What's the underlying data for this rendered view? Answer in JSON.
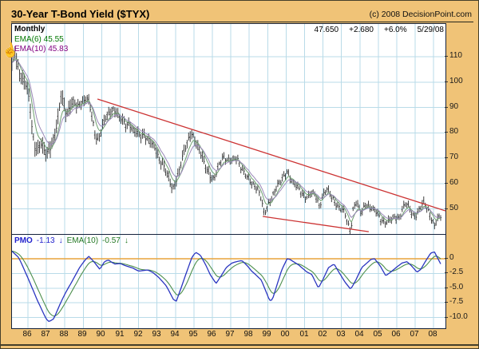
{
  "header": {
    "title": "30-Year T-Bond Yield ($TYX)",
    "copyright": "(c) 2008 DecisionPoint.com"
  },
  "price_panel": {
    "timeframe_label": "Monthly",
    "ema6_label": "EMA(6) 45.55",
    "ema10_label": "EMA(10) 45.83",
    "quote": {
      "last": "47.650",
      "change": "+2.680",
      "pct": "+6.0%",
      "date": "5/29/08"
    }
  },
  "pmo_panel": {
    "pmo_label": "PMO",
    "pmo_value": "-1.13",
    "pmo_arrow": "↓",
    "ema_label": "EMA(10)",
    "ema_value": "-0.57",
    "ema_arrow": "↓"
  },
  "colors": {
    "background_tan": "#f0c377",
    "panel_border": "#16233c",
    "grid": "#b9dbe8",
    "bar": "#2b2b2b",
    "ema6_line": "#6fa070",
    "ema10_line": "#9a88b8",
    "trendline_red": "#cc3333",
    "pmo_blue": "#2a35c0",
    "pmo_green": "#4d8f4d",
    "zero_orange": "#e9a33c",
    "tick_text": "#1a1a1a"
  },
  "chart_data": [
    {
      "type": "ohlc",
      "title": "30-Year T-Bond Yield ($TYX)",
      "timeframe": "Monthly",
      "x": {
        "start": 1985.13,
        "end": 2008.43,
        "labels": [
          "86",
          "87",
          "88",
          "89",
          "90",
          "91",
          "92",
          "93",
          "94",
          "95",
          "96",
          "97",
          "98",
          "99",
          "00",
          "01",
          "02",
          "03",
          "04",
          "05",
          "06",
          "07",
          "08"
        ],
        "label_start_year": 1986
      },
      "y": {
        "ticks": [
          110,
          100,
          90,
          80,
          70,
          60,
          50
        ],
        "range": [
          40,
          123
        ]
      },
      "series": [
        {
          "name": "TYX monthly",
          "anchors": [
            [
              1985.13,
              107
            ],
            [
              1985.2,
              109
            ],
            [
              1985.3,
              112
            ],
            [
              1985.45,
              106
            ],
            [
              1985.6,
              103
            ],
            [
              1985.75,
              100
            ],
            [
              1985.95,
              98
            ],
            [
              1986.1,
              91
            ],
            [
              1986.25,
              80
            ],
            [
              1986.4,
              74
            ],
            [
              1986.55,
              73.5
            ],
            [
              1986.7,
              76
            ],
            [
              1986.85,
              72.5
            ],
            [
              1987.0,
              72
            ],
            [
              1987.15,
              73.5
            ],
            [
              1987.3,
              76
            ],
            [
              1987.5,
              80
            ],
            [
              1987.65,
              86
            ],
            [
              1987.8,
              95
            ],
            [
              1987.95,
              91
            ],
            [
              1988.1,
              87.5
            ],
            [
              1988.3,
              90.5
            ],
            [
              1988.5,
              92
            ],
            [
              1988.65,
              89.5
            ],
            [
              1988.85,
              92.5
            ],
            [
              1989.0,
              92
            ],
            [
              1989.15,
              94
            ],
            [
              1989.3,
              92
            ],
            [
              1989.5,
              85
            ],
            [
              1989.65,
              79
            ],
            [
              1989.8,
              77.5
            ],
            [
              1990.0,
              81.5
            ],
            [
              1990.2,
              85.5
            ],
            [
              1990.4,
              87.5
            ],
            [
              1990.6,
              89.5
            ],
            [
              1990.75,
              89
            ],
            [
              1990.9,
              86.5
            ],
            [
              1991.1,
              84.5
            ],
            [
              1991.3,
              83
            ],
            [
              1991.5,
              84
            ],
            [
              1991.7,
              81
            ],
            [
              1991.9,
              79.5
            ],
            [
              1992.1,
              78.5
            ],
            [
              1992.3,
              79.5
            ],
            [
              1992.5,
              77.5
            ],
            [
              1992.7,
              75.5
            ],
            [
              1992.9,
              73.5
            ],
            [
              1993.1,
              70
            ],
            [
              1993.3,
              68
            ],
            [
              1993.5,
              64.5
            ],
            [
              1993.7,
              60
            ],
            [
              1993.85,
              57.5
            ],
            [
              1994.0,
              61
            ],
            [
              1994.15,
              64
            ],
            [
              1994.3,
              68
            ],
            [
              1994.5,
              73
            ],
            [
              1994.7,
              77
            ],
            [
              1994.85,
              80.5
            ],
            [
              1995.0,
              78.5
            ],
            [
              1995.15,
              75
            ],
            [
              1995.35,
              72
            ],
            [
              1995.55,
              68
            ],
            [
              1995.75,
              65.5
            ],
            [
              1995.95,
              62
            ],
            [
              1996.1,
              61.5
            ],
            [
              1996.25,
              64.5
            ],
            [
              1996.45,
              69
            ],
            [
              1996.6,
              71
            ],
            [
              1996.8,
              69.5
            ],
            [
              1997.0,
              68.5
            ],
            [
              1997.2,
              69.5
            ],
            [
              1997.35,
              70
            ],
            [
              1997.5,
              67.5
            ],
            [
              1997.7,
              64.5
            ],
            [
              1997.9,
              62
            ],
            [
              1998.1,
              60
            ],
            [
              1998.3,
              59.5
            ],
            [
              1998.5,
              57.5
            ],
            [
              1998.65,
              54
            ],
            [
              1998.8,
              47.5
            ],
            [
              1998.95,
              50
            ],
            [
              1999.1,
              53
            ],
            [
              1999.3,
              56
            ],
            [
              1999.5,
              58.5
            ],
            [
              1999.7,
              60.5
            ],
            [
              1999.9,
              63
            ],
            [
              2000.05,
              65.5
            ],
            [
              2000.2,
              62.5
            ],
            [
              2000.4,
              59.5
            ],
            [
              2000.6,
              58.5
            ],
            [
              2000.8,
              57
            ],
            [
              2001.0,
              55
            ],
            [
              2001.2,
              54.5
            ],
            [
              2001.4,
              56
            ],
            [
              2001.6,
              55.5
            ],
            [
              2001.8,
              51.5
            ],
            [
              2002.0,
              55
            ],
            [
              2002.2,
              57.5
            ],
            [
              2002.4,
              55.5
            ],
            [
              2002.6,
              53.5
            ],
            [
              2002.8,
              51
            ],
            [
              2003.0,
              49.5
            ],
            [
              2003.2,
              48
            ],
            [
              2003.35,
              44
            ],
            [
              2003.5,
              41.5
            ],
            [
              2003.65,
              51
            ],
            [
              2003.8,
              52
            ],
            [
              2003.95,
              50
            ],
            [
              2004.1,
              48
            ],
            [
              2004.3,
              52.5
            ],
            [
              2004.5,
              51
            ],
            [
              2004.7,
              49.5
            ],
            [
              2004.9,
              48.5
            ],
            [
              2005.1,
              46.5
            ],
            [
              2005.3,
              45
            ],
            [
              2005.5,
              44.5
            ],
            [
              2005.7,
              45.5
            ],
            [
              2005.9,
              47
            ],
            [
              2006.1,
              46.5
            ],
            [
              2006.3,
              49.5
            ],
            [
              2006.5,
              52
            ],
            [
              2006.7,
              50
            ],
            [
              2006.9,
              47.5
            ],
            [
              2007.1,
              48
            ],
            [
              2007.3,
              50.5
            ],
            [
              2007.5,
              52.5
            ],
            [
              2007.7,
              49.5
            ],
            [
              2007.9,
              46
            ],
            [
              2008.05,
              43
            ],
            [
              2008.2,
              45.5
            ],
            [
              2008.33,
              46.5
            ],
            [
              2008.42,
              47.65
            ]
          ],
          "last": 47.65
        },
        {
          "name": "EMA(6)",
          "period": 6,
          "last": 45.55
        },
        {
          "name": "EMA(10)",
          "period": 10,
          "last": 45.83
        }
      ],
      "trendlines": [
        {
          "from": [
            1989.77,
            93.3
          ],
          "to": [
            2008.64,
            49.2
          ]
        },
        {
          "from": [
            1998.73,
            47.0
          ],
          "to": [
            2004.48,
            41.0
          ]
        }
      ]
    },
    {
      "type": "line",
      "title": "PMO",
      "y": {
        "ticks": [
          0,
          -2.5,
          -5.0,
          -7.5,
          -10.0
        ],
        "zero_line": 0,
        "range": [
          -11.8,
          4.1
        ]
      },
      "series": [
        {
          "name": "PMO",
          "last": -1.13,
          "anchors": [
            [
              1985.13,
              1.3
            ],
            [
              1985.5,
              0.2
            ],
            [
              1985.75,
              -1.5
            ],
            [
              1986.1,
              -4.0
            ],
            [
              1986.5,
              -7.0
            ],
            [
              1986.8,
              -9.0
            ],
            [
              1987.0,
              -10.3
            ],
            [
              1987.15,
              -10.7
            ],
            [
              1987.4,
              -10.2
            ],
            [
              1987.7,
              -8.0
            ],
            [
              1988.0,
              -6.0
            ],
            [
              1988.4,
              -3.8
            ],
            [
              1988.8,
              -1.5
            ],
            [
              1989.1,
              -0.2
            ],
            [
              1989.3,
              0.4
            ],
            [
              1989.55,
              -0.4
            ],
            [
              1989.9,
              -1.8
            ],
            [
              1990.15,
              -0.5
            ],
            [
              1990.35,
              -0.2
            ],
            [
              1990.7,
              -0.9
            ],
            [
              1991.0,
              -0.8
            ],
            [
              1991.3,
              -1.2
            ],
            [
              1991.7,
              -1.6
            ],
            [
              1992.0,
              -2.1
            ],
            [
              1992.5,
              -1.9
            ],
            [
              1992.8,
              -2.4
            ],
            [
              1993.1,
              -3.2
            ],
            [
              1993.5,
              -4.6
            ],
            [
              1993.9,
              -7.0
            ],
            [
              1994.05,
              -7.2
            ],
            [
              1994.3,
              -5.0
            ],
            [
              1994.6,
              -2.3
            ],
            [
              1994.9,
              0.3
            ],
            [
              1995.1,
              1.1
            ],
            [
              1995.35,
              0.6
            ],
            [
              1995.6,
              -0.8
            ],
            [
              1995.9,
              -2.8
            ],
            [
              1996.2,
              -4.2
            ],
            [
              1996.5,
              -2.8
            ],
            [
              1996.75,
              -1.5
            ],
            [
              1997.05,
              -0.75
            ],
            [
              1997.3,
              -0.5
            ],
            [
              1997.6,
              -0.3
            ],
            [
              1997.9,
              -1.2
            ],
            [
              1998.1,
              -2.0
            ],
            [
              1998.65,
              -3.6
            ],
            [
              1998.9,
              -5.5
            ],
            [
              1999.1,
              -7.1
            ],
            [
              1999.25,
              -7.0
            ],
            [
              1999.5,
              -4.5
            ],
            [
              1999.75,
              -2.0
            ],
            [
              2000.05,
              0.0
            ],
            [
              2000.2,
              -0.1
            ],
            [
              2000.7,
              -1.1
            ],
            [
              2001.1,
              -2.2
            ],
            [
              2001.4,
              -2.7
            ],
            [
              2001.75,
              -5.0
            ],
            [
              2002.0,
              -3.5
            ],
            [
              2002.3,
              -1.5
            ],
            [
              2002.6,
              -0.9
            ],
            [
              2002.9,
              -2.5
            ],
            [
              2003.2,
              -4.0
            ],
            [
              2003.5,
              -5.2
            ],
            [
              2003.8,
              -3.5
            ],
            [
              2004.1,
              -1.5
            ],
            [
              2004.6,
              -0.1
            ],
            [
              2004.8,
              0.0
            ],
            [
              2005.1,
              -1.2
            ],
            [
              2005.4,
              -2.9
            ],
            [
              2005.7,
              -2.2
            ],
            [
              2006.0,
              -1.4
            ],
            [
              2006.3,
              -0.7
            ],
            [
              2006.55,
              -0.5
            ],
            [
              2006.8,
              -1.2
            ],
            [
              2007.1,
              -2.3
            ],
            [
              2007.3,
              -1.8
            ],
            [
              2007.6,
              -0.2
            ],
            [
              2007.85,
              1.0
            ],
            [
              2008.05,
              1.15
            ],
            [
              2008.2,
              0.2
            ],
            [
              2008.42,
              -1.13
            ]
          ]
        },
        {
          "name": "EMA(10)",
          "period": 10,
          "last": -0.57
        }
      ]
    }
  ]
}
